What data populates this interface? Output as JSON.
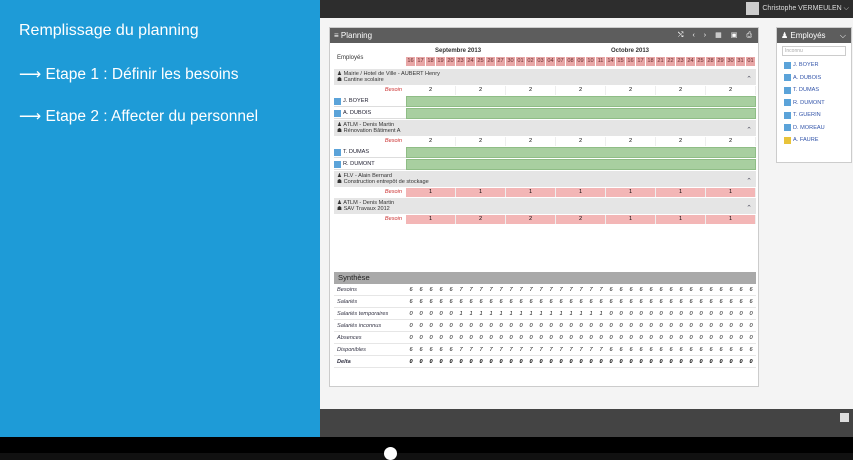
{
  "slide": {
    "title": "Remplissage du planning",
    "step1": "⟶ Etape 1 : Définir les besoins",
    "step2": "⟶ Etape 2 : Affecter du personnel"
  },
  "topbar": {
    "user": "Christophe VERMEULEN ⌵"
  },
  "planning": {
    "title": "≡ Planning",
    "tools": [
      "⤭",
      "‹",
      "›",
      "▦",
      "▣",
      "⎙"
    ],
    "employees_header": "Employés",
    "months": [
      "Septembre 2013",
      "Octobre 2013"
    ],
    "days": [
      "16",
      "17",
      "18",
      "19",
      "20",
      "23",
      "24",
      "25",
      "26",
      "27",
      "30",
      "01",
      "02",
      "03",
      "04",
      "07",
      "08",
      "09",
      "10",
      "11",
      "14",
      "15",
      "16",
      "17",
      "18",
      "21",
      "22",
      "23",
      "24",
      "25",
      "28",
      "29",
      "30",
      "31",
      "01"
    ],
    "besoin_label": "Besoin",
    "sites": [
      {
        "client": "♟ Mairie / Hotel de Ville - AUBERT Henry",
        "project": "☗ Cantine scolaire",
        "besoins": [
          "2",
          "2",
          "2",
          "2",
          "2",
          "2",
          "2"
        ],
        "employees": [
          "J. BOYER",
          "A. DUBOIS"
        ],
        "chev": "⌃"
      },
      {
        "client": "♟ ATLM - Denis Martin",
        "project": "☗ Rénovation Bâtiment A",
        "besoins": [
          "2",
          "2",
          "2",
          "2",
          "2",
          "2",
          "2"
        ],
        "employees": [
          "T. DUMAS",
          "R. DUMONT"
        ],
        "chev": "⌃"
      },
      {
        "client": "♟ FLV - Alain Bernard",
        "project": "☗ Construction entrepôt de stockage",
        "besoins": [
          "1",
          "1",
          "1",
          "1",
          "1",
          "1",
          "1"
        ],
        "employees": [],
        "chev": "⌃"
      },
      {
        "client": "♟ ATLM - Denis Martin",
        "project": "☗ SAV Travaux 2012",
        "besoins": [
          "1",
          "2",
          "2",
          "2",
          "1",
          "1",
          "1"
        ],
        "employees": [],
        "chev": "⌃"
      }
    ],
    "synthese": {
      "title": "Synthèse",
      "rows": [
        {
          "label": "Besoins",
          "vals": [
            "6",
            "6",
            "6",
            "6",
            "6",
            "7",
            "7",
            "7",
            "7",
            "7",
            "7",
            "7",
            "7",
            "7",
            "7",
            "7",
            "7",
            "7",
            "7",
            "7",
            "6",
            "6",
            "6",
            "6",
            "6",
            "6",
            "6",
            "6",
            "6",
            "6",
            "6",
            "6",
            "6",
            "6",
            "6"
          ]
        },
        {
          "label": "Salariés",
          "vals": [
            "6",
            "6",
            "6",
            "6",
            "6",
            "6",
            "6",
            "6",
            "6",
            "6",
            "6",
            "6",
            "6",
            "6",
            "6",
            "6",
            "6",
            "6",
            "6",
            "6",
            "6",
            "6",
            "6",
            "6",
            "6",
            "6",
            "6",
            "6",
            "6",
            "6",
            "6",
            "6",
            "6",
            "6",
            "6"
          ]
        },
        {
          "label": "Salariés temporaires",
          "vals": [
            "0",
            "0",
            "0",
            "0",
            "0",
            "1",
            "1",
            "1",
            "1",
            "1",
            "1",
            "1",
            "1",
            "1",
            "1",
            "1",
            "1",
            "1",
            "1",
            "1",
            "0",
            "0",
            "0",
            "0",
            "0",
            "0",
            "0",
            "0",
            "0",
            "0",
            "0",
            "0",
            "0",
            "0",
            "0"
          ]
        },
        {
          "label": "Salariés inconnus",
          "vals": [
            "0",
            "0",
            "0",
            "0",
            "0",
            "0",
            "0",
            "0",
            "0",
            "0",
            "0",
            "0",
            "0",
            "0",
            "0",
            "0",
            "0",
            "0",
            "0",
            "0",
            "0",
            "0",
            "0",
            "0",
            "0",
            "0",
            "0",
            "0",
            "0",
            "0",
            "0",
            "0",
            "0",
            "0",
            "0"
          ]
        },
        {
          "label": "Absences",
          "vals": [
            "0",
            "0",
            "0",
            "0",
            "0",
            "0",
            "0",
            "0",
            "0",
            "0",
            "0",
            "0",
            "0",
            "0",
            "0",
            "0",
            "0",
            "0",
            "0",
            "0",
            "0",
            "0",
            "0",
            "0",
            "0",
            "0",
            "0",
            "0",
            "0",
            "0",
            "0",
            "0",
            "0",
            "0",
            "0"
          ]
        },
        {
          "label": "Disponibles",
          "vals": [
            "6",
            "6",
            "6",
            "6",
            "6",
            "7",
            "7",
            "7",
            "7",
            "7",
            "7",
            "7",
            "7",
            "7",
            "7",
            "7",
            "7",
            "7",
            "7",
            "7",
            "6",
            "6",
            "6",
            "6",
            "6",
            "6",
            "6",
            "6",
            "6",
            "6",
            "6",
            "6",
            "6",
            "6",
            "6"
          ]
        },
        {
          "label": "Delta",
          "vals": [
            "0",
            "0",
            "0",
            "0",
            "0",
            "0",
            "0",
            "0",
            "0",
            "0",
            "0",
            "0",
            "0",
            "0",
            "0",
            "0",
            "0",
            "0",
            "0",
            "0",
            "0",
            "0",
            "0",
            "0",
            "0",
            "0",
            "0",
            "0",
            "0",
            "0",
            "0",
            "0",
            "0",
            "0",
            "0"
          ]
        }
      ]
    }
  },
  "employes": {
    "title": "♟ Employés",
    "chev": "⌵",
    "search_placeholder": "Inconnu",
    "list": [
      {
        "name": "J. BOYER",
        "c": "b"
      },
      {
        "name": "A. DUBOIS",
        "c": "b"
      },
      {
        "name": "T. DUMAS",
        "c": "b"
      },
      {
        "name": "R. DUMONT",
        "c": "b"
      },
      {
        "name": "T. GUERIN",
        "c": "b"
      },
      {
        "name": "D. MOREAU",
        "c": "b"
      },
      {
        "name": "A. FAURE",
        "c": "y"
      }
    ]
  }
}
